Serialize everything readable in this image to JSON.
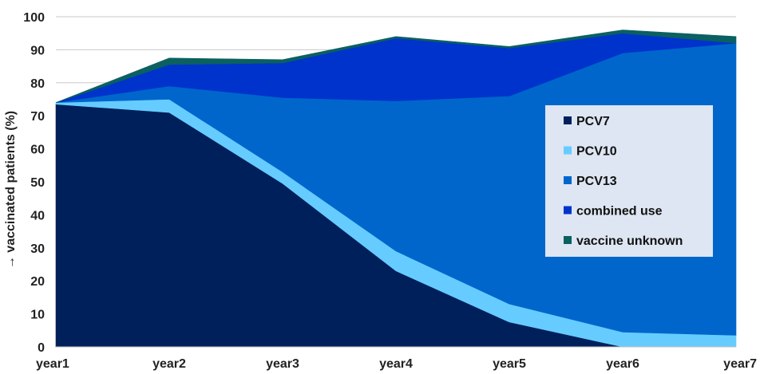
{
  "chart_data": {
    "type": "area",
    "stacked": true,
    "categories": [
      "year1",
      "year2",
      "year3",
      "year4",
      "year5",
      "year6",
      "year7"
    ],
    "ylabel": "→ vaccinated patients (%)",
    "ylim": [
      0,
      100
    ],
    "yticks": [
      0,
      10,
      20,
      30,
      40,
      50,
      60,
      70,
      80,
      90,
      100
    ],
    "grid": true,
    "legend_position": "right",
    "series": [
      {
        "name": "PCV7",
        "color": "#00205b",
        "values": [
          73.5,
          71,
          49.5,
          23,
          7.5,
          0,
          0
        ]
      },
      {
        "name": "PCV10",
        "color": "#66ccff",
        "values": [
          0.5,
          4,
          3.5,
          6,
          5.5,
          4.5,
          3.5
        ]
      },
      {
        "name": "PCV13",
        "color": "#0066cc",
        "values": [
          0,
          4,
          22.5,
          45.5,
          63,
          84.5,
          88.5
        ]
      },
      {
        "name": "combined use",
        "color": "#0033cc",
        "values": [
          0,
          6.5,
          10.5,
          19,
          14.5,
          6,
          0
        ]
      },
      {
        "name": "vaccine unknown",
        "color": "#0b6060",
        "values": [
          0,
          2,
          1,
          0.5,
          0.5,
          1,
          2
        ]
      }
    ]
  }
}
